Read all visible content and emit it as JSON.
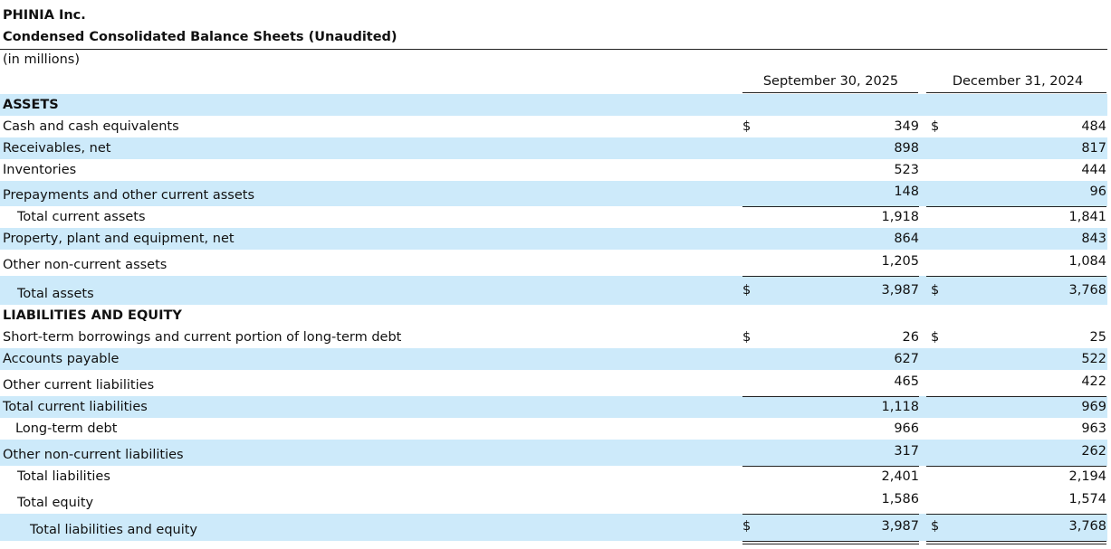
{
  "header": {
    "company": "PHINIA Inc.",
    "title": "Condensed Consolidated Balance Sheets (Unaudited)",
    "units": "(in millions)"
  },
  "table": {
    "columns": [
      "September 30, 2025",
      "December 31, 2024"
    ],
    "rows": [
      {
        "label": "ASSETS"
      },
      {
        "label": "Cash and cash equivalents",
        "cells": [
          {
            "currency": "$",
            "value": "349"
          },
          {
            "currency": "$",
            "value": "484"
          }
        ]
      },
      {
        "label": "Receivables, net",
        "cells": [
          {
            "value": "898"
          },
          {
            "value": "817"
          }
        ]
      },
      {
        "label": "Inventories",
        "cells": [
          {
            "value": "523"
          },
          {
            "value": "444"
          }
        ]
      },
      {
        "label": "Prepayments and other current assets",
        "cells": [
          {
            "value": "148"
          },
          {
            "value": "96"
          }
        ]
      },
      {
        "label": "Total current assets",
        "cells": [
          {
            "value": "1,918"
          },
          {
            "value": "1,841"
          }
        ]
      },
      {
        "label": "Property, plant and equipment, net",
        "cells": [
          {
            "value": "864"
          },
          {
            "value": "843"
          }
        ]
      },
      {
        "label": "Other non-current assets",
        "cells": [
          {
            "value": "1,205"
          },
          {
            "value": "1,084"
          }
        ]
      },
      {
        "label": "Total assets",
        "cells": [
          {
            "currency": "$",
            "value": "3,987"
          },
          {
            "currency": "$",
            "value": "3,768"
          }
        ]
      },
      {
        "label": "LIABILITIES AND EQUITY"
      },
      {
        "label": "Short-term borrowings and current portion of long-term debt",
        "cells": [
          {
            "currency": "$",
            "value": "26"
          },
          {
            "currency": "$",
            "value": "25"
          }
        ]
      },
      {
        "label": "Accounts payable",
        "cells": [
          {
            "value": "627"
          },
          {
            "value": "522"
          }
        ]
      },
      {
        "label": "Other current liabilities",
        "cells": [
          {
            "value": "465"
          },
          {
            "value": "422"
          }
        ]
      },
      {
        "label": "Total current liabilities",
        "cells": [
          {
            "value": "1,118"
          },
          {
            "value": "969"
          }
        ]
      },
      {
        "label": "Long-term debt",
        "cells": [
          {
            "value": "966"
          },
          {
            "value": "963"
          }
        ]
      },
      {
        "label": "Other non-current liabilities",
        "cells": [
          {
            "value": "317"
          },
          {
            "value": "262"
          }
        ]
      },
      {
        "label": "Total liabilities",
        "cells": [
          {
            "value": "2,401"
          },
          {
            "value": "2,194"
          }
        ]
      },
      {
        "label": "Total equity",
        "cells": [
          {
            "value": "1,586"
          },
          {
            "value": "1,574"
          }
        ]
      },
      {
        "label": "Total liabilities and equity",
        "cells": [
          {
            "currency": "$",
            "value": "3,987"
          },
          {
            "currency": "$",
            "value": "3,768"
          }
        ]
      }
    ]
  }
}
